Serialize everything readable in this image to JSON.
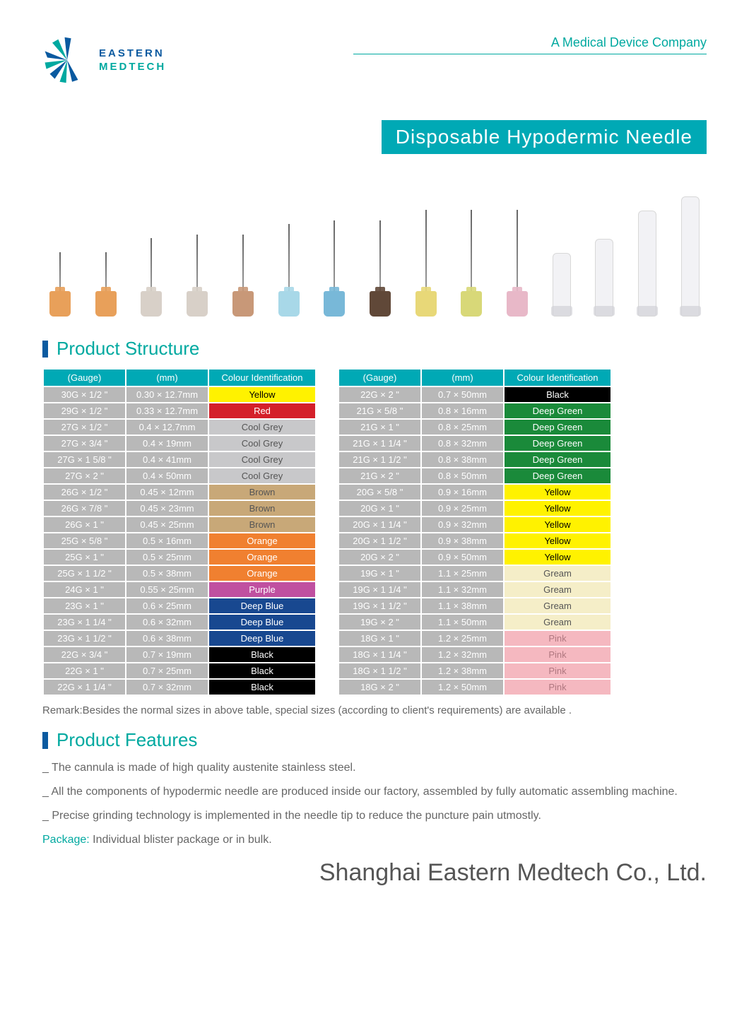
{
  "brand": {
    "line1": "EASTERN",
    "line2": "MEDTECH"
  },
  "tagline": "A Medical Device Company",
  "title": "Disposable Hypodermic Needle",
  "needles": [
    {
      "shaft": 55,
      "hub": "#e8a05a"
    },
    {
      "shaft": 55,
      "hub": "#e8a05a"
    },
    {
      "shaft": 75,
      "hub": "#d8d0c8"
    },
    {
      "shaft": 80,
      "hub": "#d8d0c8"
    },
    {
      "shaft": 80,
      "hub": "#c89878"
    },
    {
      "shaft": 95,
      "hub": "#a8d8e8"
    },
    {
      "shaft": 100,
      "hub": "#78b8d8"
    },
    {
      "shaft": 100,
      "hub": "#604838"
    },
    {
      "shaft": 115,
      "hub": "#e8d878"
    },
    {
      "shaft": 115,
      "hub": "#d8d878"
    },
    {
      "shaft": 115,
      "hub": "#e8b8c8"
    }
  ],
  "caps": [
    90,
    110,
    150,
    170
  ],
  "sections": {
    "structure": "Product Structure",
    "features": "Product Features"
  },
  "table_headers": {
    "gauge": "(Gauge)",
    "mm": "(mm)",
    "colour": "Colour Identification"
  },
  "colours": {
    "yellow": {
      "label": "Yellow",
      "bg": "#fff200",
      "fg": "#000000"
    },
    "red": {
      "label": "Red",
      "bg": "#d4202a",
      "fg": "#ffffff"
    },
    "coolgrey": {
      "label": "Cool Grey",
      "bg": "#c8c8ca",
      "fg": "#555555"
    },
    "brown": {
      "label": "Brown",
      "bg": "#c8a878",
      "fg": "#555555"
    },
    "orange": {
      "label": "Orange",
      "bg": "#f08030",
      "fg": "#ffffff"
    },
    "purple": {
      "label": "Purple",
      "bg": "#c050a0",
      "fg": "#ffffff"
    },
    "deepblue": {
      "label": "Deep Blue",
      "bg": "#184890",
      "fg": "#ffffff"
    },
    "black": {
      "label": "Black",
      "bg": "#000000",
      "fg": "#ffffff"
    },
    "deepgreen": {
      "label": "Deep Green",
      "bg": "#1a8a3a",
      "fg": "#ffffff"
    },
    "gream": {
      "label": "Gream",
      "bg": "#f5eec8",
      "fg": "#555555"
    },
    "pink": {
      "label": "Pink",
      "bg": "#f5b8c0",
      "fg": "#b07880"
    }
  },
  "left_rows": [
    {
      "g": "30G × 1/2 \"",
      "m": "0.30 × 12.7mm",
      "c": "yellow"
    },
    {
      "g": "29G × 1/2 \"",
      "m": "0.33 × 12.7mm",
      "c": "red"
    },
    {
      "g": "27G × 1/2 \"",
      "m": "0.4 × 12.7mm",
      "c": "coolgrey"
    },
    {
      "g": "27G × 3/4 \"",
      "m": "0.4 × 19mm",
      "c": "coolgrey"
    },
    {
      "g": "27G × 1  5/8 \"",
      "m": "0.4 × 41mm",
      "c": "coolgrey"
    },
    {
      "g": "27G × 2 \"",
      "m": "0.4 × 50mm",
      "c": "coolgrey"
    },
    {
      "g": "26G × 1/2 \"",
      "m": "0.45 × 12mm",
      "c": "brown"
    },
    {
      "g": "26G × 7/8 \"",
      "m": "0.45 × 23mm",
      "c": "brown"
    },
    {
      "g": "26G × 1 \"",
      "m": "0.45 × 25mm",
      "c": "brown"
    },
    {
      "g": "25G × 5/8 \"",
      "m": "0.5 × 16mm",
      "c": "orange"
    },
    {
      "g": "25G × 1 \"",
      "m": "0.5 × 25mm",
      "c": "orange"
    },
    {
      "g": "25G × 1  1/2 \"",
      "m": "0.5 × 38mm",
      "c": "orange"
    },
    {
      "g": "24G × 1 \"",
      "m": "0.55 × 25mm",
      "c": "purple"
    },
    {
      "g": "23G × 1 \"",
      "m": "0.6 × 25mm",
      "c": "deepblue"
    },
    {
      "g": "23G × 1  1/4 \"",
      "m": "0.6 × 32mm",
      "c": "deepblue"
    },
    {
      "g": "23G × 1  1/2 \"",
      "m": "0.6 × 38mm",
      "c": "deepblue"
    },
    {
      "g": "22G × 3/4 \"",
      "m": "0.7 × 19mm",
      "c": "black"
    },
    {
      "g": "22G × 1 \"",
      "m": "0.7 × 25mm",
      "c": "black"
    },
    {
      "g": "22G × 1  1/4 \"",
      "m": "0.7 × 32mm",
      "c": "black"
    }
  ],
  "right_rows": [
    {
      "g": "22G × 2 \"",
      "m": "0.7 × 50mm",
      "c": "black"
    },
    {
      "g": "21G × 5/8 \"",
      "m": "0.8 × 16mm",
      "c": "deepgreen"
    },
    {
      "g": "21G × 1 \"",
      "m": "0.8 × 25mm",
      "c": "deepgreen"
    },
    {
      "g": "21G × 1  1/4 \"",
      "m": "0.8 × 32mm",
      "c": "deepgreen"
    },
    {
      "g": "21G × 1  1/2 \"",
      "m": "0.8 × 38mm",
      "c": "deepgreen"
    },
    {
      "g": "21G × 2 \"",
      "m": "0.8 × 50mm",
      "c": "deepgreen"
    },
    {
      "g": "20G × 5/8 \"",
      "m": "0.9 × 16mm",
      "c": "yellow"
    },
    {
      "g": "20G × 1 \"",
      "m": "0.9 × 25mm",
      "c": "yellow"
    },
    {
      "g": "20G × 1  1/4 \"",
      "m": "0.9 × 32mm",
      "c": "yellow"
    },
    {
      "g": "20G × 1  1/2 \"",
      "m": "0.9 × 38mm",
      "c": "yellow"
    },
    {
      "g": "20G × 2 \"",
      "m": "0.9 × 50mm",
      "c": "yellow"
    },
    {
      "g": "19G × 1 \"",
      "m": "1.1 × 25mm",
      "c": "gream"
    },
    {
      "g": "19G × 1  1/4 \"",
      "m": "1.1 × 32mm",
      "c": "gream"
    },
    {
      "g": "19G × 1  1/2 \"",
      "m": "1.1 × 38mm",
      "c": "gream"
    },
    {
      "g": "19G × 2 \"",
      "m": "1.1 × 50mm",
      "c": "gream"
    },
    {
      "g": "18G × 1 \"",
      "m": "1.2 × 25mm",
      "c": "pink"
    },
    {
      "g": "18G × 1  1/4 \"",
      "m": "1.2 × 32mm",
      "c": "pink"
    },
    {
      "g": "18G × 1  1/2 \"",
      "m": "1.2 × 38mm",
      "c": "pink"
    },
    {
      "g": "18G × 2 \"",
      "m": "1.2 × 50mm",
      "c": "pink"
    }
  ],
  "remark": "Remark:Besides  the normal sizes in above table, special sizes (according to client's requirements) are  available .",
  "features": [
    "_ The cannula is made of high quality austenite stainless steel.",
    "_ All the components of hypodermic needle are produced  inside our factory, assembled by fully automatic assembling machine.",
    "_ Precise grinding technology is implemented in the needle tip to reduce the puncture pain utmostly."
  ],
  "package_label": "Package:",
  "package_text": " Individual blister package or  in bulk.",
  "company": "Shanghai Eastern Medtech Co., Ltd."
}
